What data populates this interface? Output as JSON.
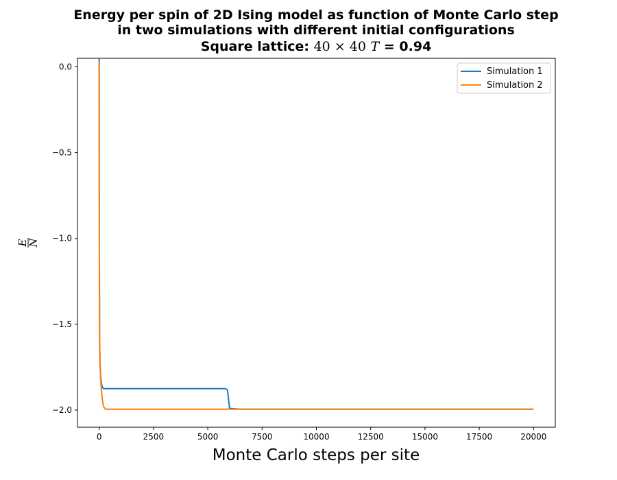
{
  "chart_data": {
    "type": "line",
    "title_line1": "Energy per spin of 2D Ising model as function of Monte Carlo step",
    "title_line2": "in two simulations with different initial configurations",
    "title_line3_prefix": "Square lattice:",
    "title_line3_size": "40 × 40",
    "title_line3_t_symbol": "T",
    "title_line3_t_value": "= 0.94",
    "xlabel": "Monte Carlo steps per site",
    "ylabel_numerator": "E",
    "ylabel_denominator": "N",
    "xlim": [
      -1000,
      21000
    ],
    "ylim": [
      -2.1,
      0.05
    ],
    "xticks": [
      0,
      2500,
      5000,
      7500,
      10000,
      12500,
      15000,
      17500,
      20000
    ],
    "xtick_labels": [
      "0",
      "2500",
      "5000",
      "7500",
      "10000",
      "12500",
      "15000",
      "17500",
      "20000"
    ],
    "yticks": [
      0.0,
      -0.5,
      -1.0,
      -1.5,
      -2.0
    ],
    "ytick_labels": [
      "0.0",
      "−0.5",
      "−1.0",
      "−1.5",
      "−2.0"
    ],
    "legend_position": "top-right",
    "grid": false,
    "series": [
      {
        "name": "Simulation 1",
        "color": "#1f77b4",
        "x": [
          0,
          5,
          10,
          20,
          40,
          70,
          100,
          130,
          160,
          200,
          500,
          1000,
          2000,
          3000,
          4000,
          5000,
          5500,
          5800,
          5900,
          5950,
          6000,
          6500,
          8000,
          10000,
          12000,
          14000,
          16000,
          18000,
          20000
        ],
        "y": [
          0.05,
          -0.6,
          -1.2,
          -1.6,
          -1.74,
          -1.8,
          -1.84,
          -1.86,
          -1.87,
          -1.875,
          -1.875,
          -1.875,
          -1.875,
          -1.875,
          -1.875,
          -1.875,
          -1.875,
          -1.875,
          -1.88,
          -1.93,
          -1.99,
          -1.995,
          -1.995,
          -1.995,
          -1.995,
          -1.995,
          -1.995,
          -1.995,
          -1.995
        ]
      },
      {
        "name": "Simulation 2",
        "color": "#ff7f0e",
        "x": [
          0,
          5,
          10,
          20,
          40,
          70,
          100,
          150,
          200,
          300,
          500,
          1000,
          2000,
          4000,
          6000,
          8000,
          10000,
          12000,
          14000,
          16000,
          18000,
          20000
        ],
        "y": [
          0.03,
          -0.5,
          -1.1,
          -1.55,
          -1.72,
          -1.82,
          -1.88,
          -1.94,
          -1.98,
          -1.995,
          -1.995,
          -1.995,
          -1.995,
          -1.995,
          -1.995,
          -1.995,
          -1.995,
          -1.995,
          -1.995,
          -1.995,
          -1.995,
          -1.995
        ]
      }
    ]
  }
}
